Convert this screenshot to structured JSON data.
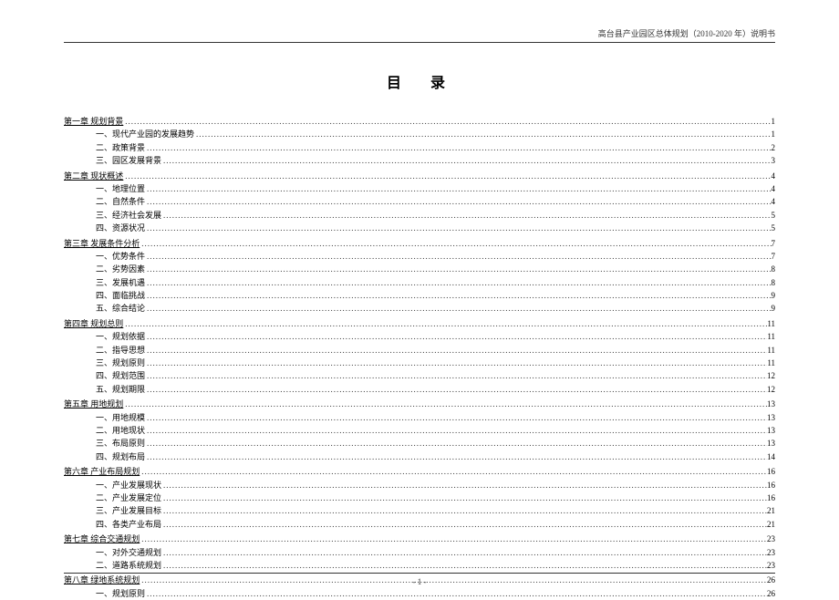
{
  "header": "高台县产业园区总体规划（2010-2020 年）说明书",
  "title": "目　录",
  "footer": "- 1 -",
  "toc": [
    {
      "type": "chapter",
      "label": "第一章 规划背景",
      "page": "1"
    },
    {
      "type": "section",
      "label": "一、现代产业园的发展趋势",
      "page": "1"
    },
    {
      "type": "section",
      "label": "二、政策背景",
      "page": "2"
    },
    {
      "type": "section",
      "label": "三、园区发展背景",
      "page": "3"
    },
    {
      "type": "chapter",
      "label": "第二章 现状概述",
      "page": "4"
    },
    {
      "type": "section",
      "label": "一、地理位置",
      "page": "4"
    },
    {
      "type": "section",
      "label": "二、自然条件",
      "page": "4"
    },
    {
      "type": "section",
      "label": "三、经济社会发展",
      "page": "5"
    },
    {
      "type": "section",
      "label": "四、资源状况",
      "page": "5"
    },
    {
      "type": "chapter",
      "label": "第三章 发展条件分析",
      "page": "7"
    },
    {
      "type": "section",
      "label": "一、优势条件",
      "page": "7"
    },
    {
      "type": "section",
      "label": "二、劣势因素",
      "page": "8"
    },
    {
      "type": "section",
      "label": "三、发展机遇",
      "page": "8"
    },
    {
      "type": "section",
      "label": "四、面临挑战",
      "page": "9"
    },
    {
      "type": "section",
      "label": "五、综合结论",
      "page": "9"
    },
    {
      "type": "chapter",
      "label": "第四章 规划总则",
      "page": "11"
    },
    {
      "type": "section",
      "label": "一、规划依据",
      "page": "11"
    },
    {
      "type": "section",
      "label": "二、指导思想",
      "page": "11"
    },
    {
      "type": "section",
      "label": "三、规划原则",
      "page": "11"
    },
    {
      "type": "section",
      "label": "四、规划范围",
      "page": "12"
    },
    {
      "type": "section",
      "label": "五、规划期限",
      "page": "12"
    },
    {
      "type": "chapter",
      "label": "第五章 用地规划",
      "page": "13"
    },
    {
      "type": "section",
      "label": "一、用地规模",
      "page": "13"
    },
    {
      "type": "section",
      "label": "二、用地现状",
      "page": "13"
    },
    {
      "type": "section",
      "label": "三、布局原则",
      "page": "13"
    },
    {
      "type": "section",
      "label": "四、规划布局",
      "page": "14"
    },
    {
      "type": "chapter",
      "label": "第六章 产业布局规划",
      "page": "16"
    },
    {
      "type": "section",
      "label": "一、产业发展现状",
      "page": "16"
    },
    {
      "type": "section",
      "label": "二、产业发展定位",
      "page": "16"
    },
    {
      "type": "section",
      "label": "三、产业发展目标",
      "page": "21"
    },
    {
      "type": "section",
      "label": "四、各类产业布局",
      "page": "21"
    },
    {
      "type": "chapter",
      "label": "第七章 综合交通规划",
      "page": "23"
    },
    {
      "type": "section",
      "label": "一、对外交通规划",
      "page": "23"
    },
    {
      "type": "section",
      "label": "二、道路系统规划",
      "page": "23"
    },
    {
      "type": "chapter",
      "label": "第八章 绿地系统规划",
      "page": "26"
    },
    {
      "type": "section",
      "label": "一、规划原则",
      "page": "26"
    }
  ]
}
